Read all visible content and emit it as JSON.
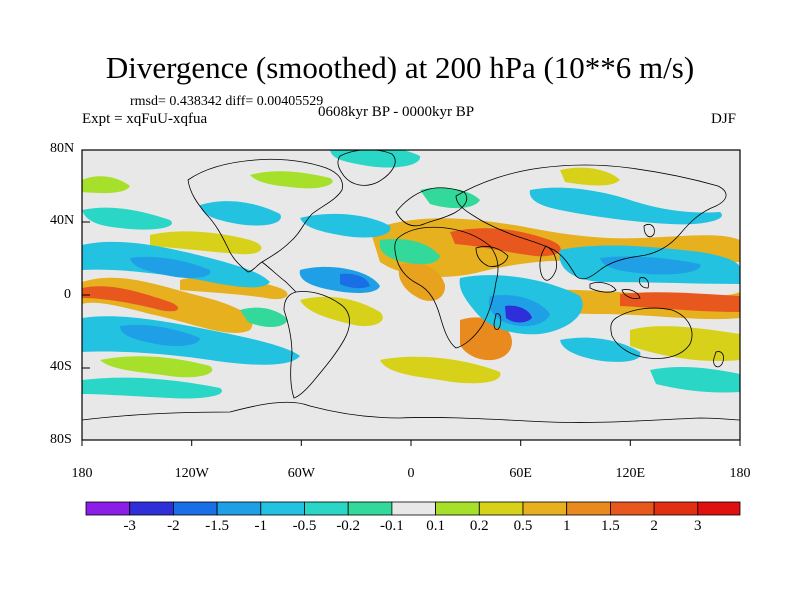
{
  "title": "Divergence (smoothed) at 200 hPa (10**6 m/s)",
  "stats": "rmsd= 0.438342 diff= 0.00405529",
  "experiment": "Expt = xqFuU-xqfua",
  "period": "0608kyr BP - 0000kyr BP",
  "season": "DJF",
  "lat_labels": [
    "80N",
    "40N",
    "0",
    "40S",
    "80S"
  ],
  "lon_labels": [
    "180",
    "120W",
    "60W",
    "0",
    "60E",
    "120E",
    "180"
  ],
  "colorbar": {
    "labels": [
      "-3",
      "-2",
      "-1.5",
      "-1",
      "-0.5",
      "-0.2",
      "-0.1",
      "0.1",
      "0.2",
      "0.5",
      "1",
      "1.5",
      "2",
      "3"
    ],
    "colors": [
      "#8b1fe8",
      "#2e2fd8",
      "#1b6fe6",
      "#1fa0e6",
      "#22c2e0",
      "#2ad6c6",
      "#33d99a",
      "#e8e8e8",
      "#a6e02a",
      "#d8d11a",
      "#e6b01e",
      "#e88a1e",
      "#e8581e",
      "#e22f12",
      "#e01010"
    ]
  },
  "colors": {
    "background_land_sea": "#e8e8e8",
    "positive_strong": "#e8581e",
    "negative_strong": "#2e2fd8"
  }
}
